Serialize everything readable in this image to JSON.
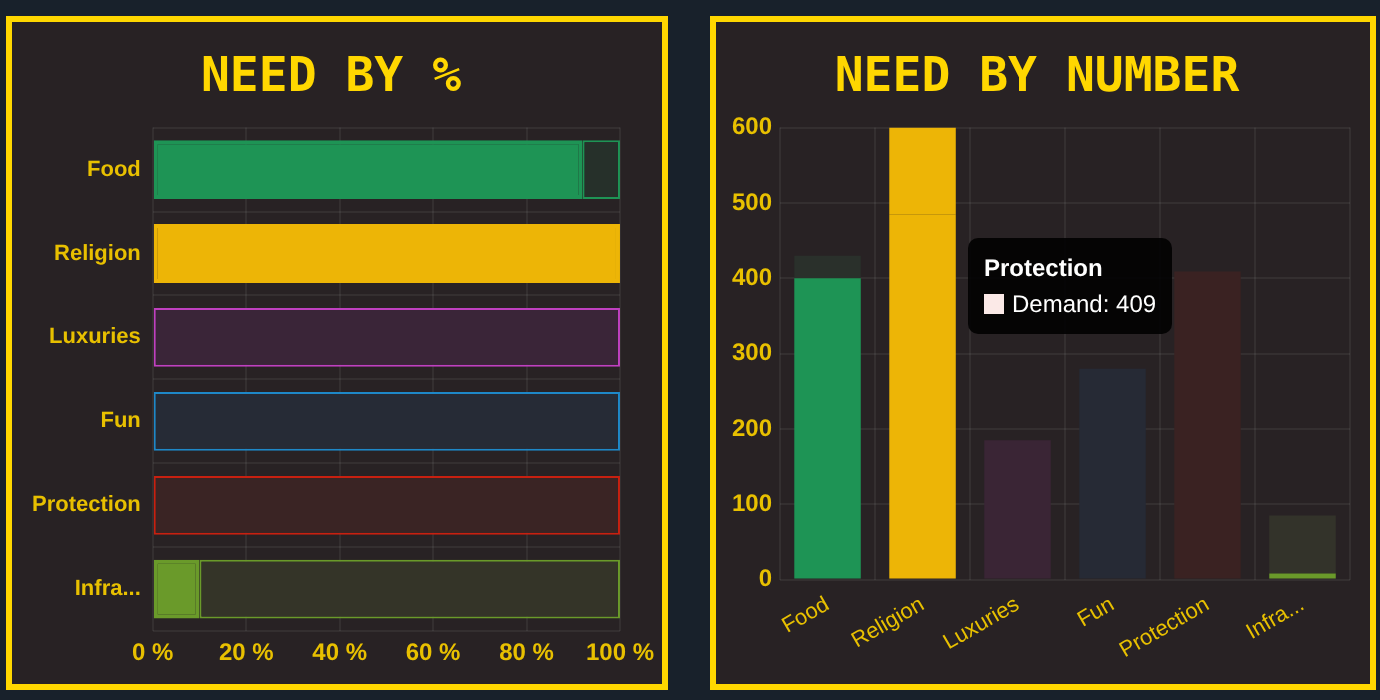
{
  "chart_data": [
    {
      "type": "bar",
      "title": "NEED BY %",
      "orientation": "horizontal",
      "stacked": true,
      "categories": [
        "Food",
        "Religion",
        "Luxuries",
        "Fun",
        "Protection",
        "Infra..."
      ],
      "series": [
        {
          "values": [
            92,
            100,
            0,
            0,
            0,
            10
          ],
          "colors": [
            "#1e9455",
            "#edb506",
            "#c040c0",
            "#1e88c8",
            "#c82010",
            "#6a9a2a"
          ]
        },
        {
          "values": [
            8,
            0,
            100,
            100,
            100,
            90
          ],
          "colors": [
            "#26302a",
            "#edb506",
            "#3a2538",
            "#262b36",
            "#3a2424",
            "#343428"
          ]
        }
      ],
      "xlim": [
        0,
        100
      ],
      "xticks": [
        {
          "value": 0,
          "label": "0 %"
        },
        {
          "value": 20,
          "label": "20 %"
        },
        {
          "value": 40,
          "label": "40 %"
        },
        {
          "value": 60,
          "label": "60 %"
        },
        {
          "value": 80,
          "label": "80 %"
        },
        {
          "value": 100,
          "label": "100 %"
        }
      ],
      "grid": true,
      "legend": false
    },
    {
      "type": "bar",
      "title": "NEED BY NUMBER",
      "stacked": true,
      "categories": [
        "Food",
        "Religion",
        "Luxuries",
        "Fun",
        "Protection",
        "Infra..."
      ],
      "series": [
        {
          "values": [
            400,
            485,
            0,
            0,
            0,
            8
          ],
          "colors": [
            "#1e9455",
            "#edb506",
            "#c040c0",
            "#1e88c8",
            "#c82010",
            "#6a9a2a"
          ]
        },
        {
          "values": [
            30,
            115,
            185,
            280,
            409,
            77
          ],
          "colors": [
            "#2a302b",
            "#edb506",
            "#3a2535",
            "#262a35",
            "#3a2222",
            "#33332a"
          ]
        }
      ],
      "ylim": [
        0,
        600
      ],
      "yticks": [
        0,
        100,
        200,
        300,
        400,
        500,
        600
      ],
      "annotations": [
        "Protection",
        "Demand: 409"
      ],
      "grid": true,
      "legend": false
    }
  ]
}
